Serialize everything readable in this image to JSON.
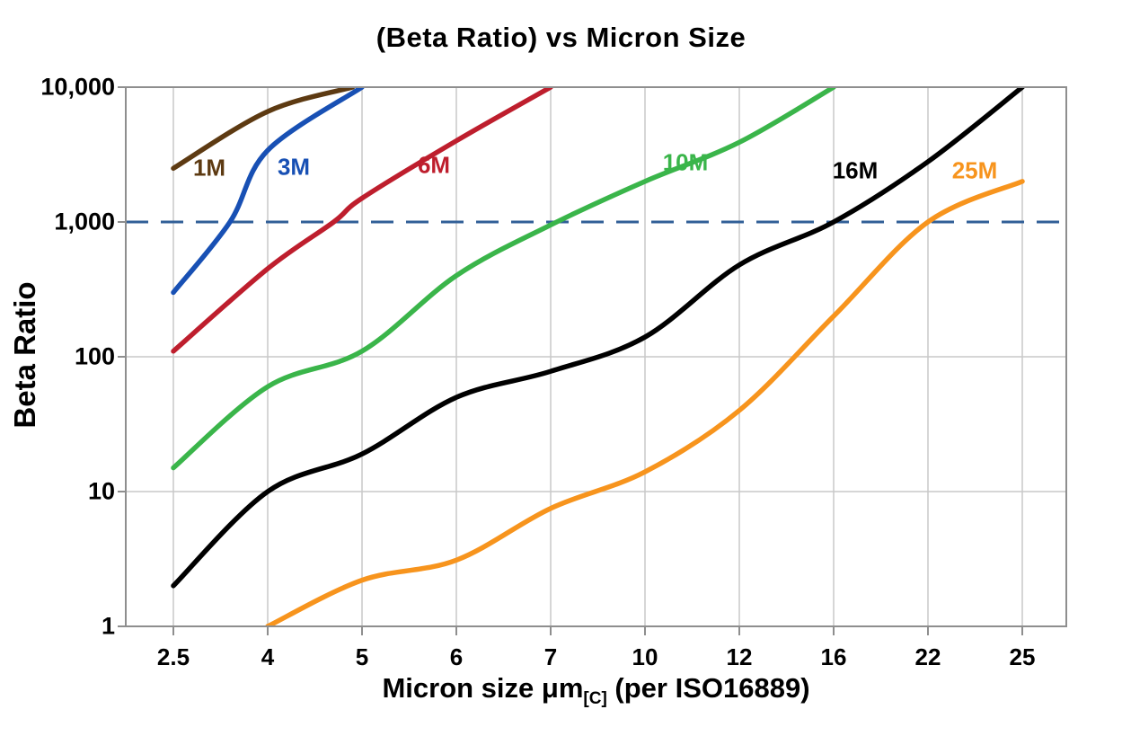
{
  "chart_data": {
    "type": "line",
    "title": "(Beta Ratio) vs Micron Size",
    "ylabel": "Beta Ratio",
    "xlabel": "Micron size μm[C] (per ISO16889)",
    "xlabel_parts": {
      "main": "Micron size μm",
      "sub": "[C]",
      "rest": " (per ISO16889)"
    },
    "y_scale": "log",
    "ylim": [
      1,
      10000
    ],
    "grid": true,
    "x_categories": [
      2.5,
      4,
      5,
      6,
      7,
      10,
      12,
      16,
      22,
      25
    ],
    "x_tick_labels": [
      "2.5",
      "4",
      "5",
      "6",
      "7",
      "10",
      "12",
      "16",
      "22",
      "25"
    ],
    "y_ticks": [
      {
        "label": "10,000",
        "value": 10000
      },
      {
        "label": "1,000",
        "value": 1000
      },
      {
        "label": "100",
        "value": 100
      },
      {
        "label": "10",
        "value": 10
      },
      {
        "label": "1",
        "value": 1
      }
    ],
    "reference_line": {
      "value": 1000,
      "style": "dashed",
      "color": "#315f97"
    },
    "colors": {
      "grid": "#c9c9c9",
      "axis": "#8e8e8e"
    },
    "series": [
      {
        "name": "1M",
        "color": "#5d3a12",
        "label_xy": [
          233,
          187
        ],
        "points": [
          [
            2.5,
            2500
          ],
          [
            4,
            6600
          ],
          [
            4.9,
            10000
          ]
        ]
      },
      {
        "name": "3M",
        "color": "#1850b4",
        "label_xy": [
          327,
          186
        ],
        "points": [
          [
            2.5,
            300
          ],
          [
            3.4,
            1000
          ],
          [
            4,
            3400
          ],
          [
            5,
            10000
          ]
        ]
      },
      {
        "name": "6M",
        "color": "#be1e2d",
        "label_xy": [
          483,
          184
        ],
        "points": [
          [
            2.5,
            110
          ],
          [
            4,
            450
          ],
          [
            4.7,
            1000
          ],
          [
            5,
            1500
          ],
          [
            6,
            4000
          ],
          [
            7,
            10000
          ]
        ]
      },
      {
        "name": "10M",
        "color": "#3ab54a",
        "label_xy": [
          763,
          181
        ],
        "points": [
          [
            2.5,
            15
          ],
          [
            4,
            60
          ],
          [
            5,
            110
          ],
          [
            6,
            400
          ],
          [
            7,
            950
          ],
          [
            10,
            2000
          ],
          [
            12,
            3900
          ],
          [
            16,
            10000
          ]
        ]
      },
      {
        "name": "16M",
        "color": "#000000",
        "label_xy": [
          952,
          190
        ],
        "points": [
          [
            2.5,
            2
          ],
          [
            4,
            10
          ],
          [
            5,
            19
          ],
          [
            6,
            50
          ],
          [
            7,
            78
          ],
          [
            10,
            140
          ],
          [
            12,
            480
          ],
          [
            16,
            1000
          ],
          [
            22,
            2800
          ],
          [
            25,
            10000
          ]
        ]
      },
      {
        "name": "25M",
        "color": "#f7941d",
        "label_xy": [
          1085,
          190
        ],
        "points": [
          [
            4,
            1
          ],
          [
            5,
            2.2
          ],
          [
            6,
            3.1
          ],
          [
            7,
            7.5
          ],
          [
            10,
            14
          ],
          [
            12,
            40
          ],
          [
            16,
            200
          ],
          [
            22,
            1000
          ],
          [
            25,
            2000
          ]
        ]
      }
    ]
  }
}
